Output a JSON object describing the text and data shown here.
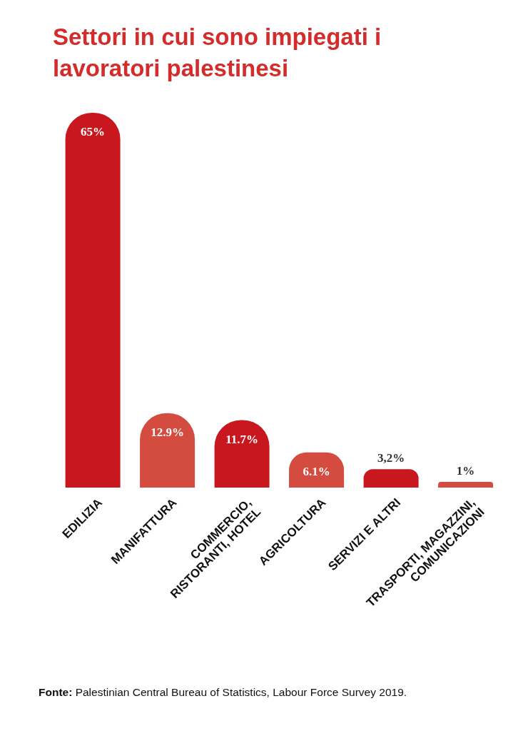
{
  "chart_data": {
    "type": "bar",
    "title": "Settori in cui sono impiegati i lavoratori palestinesi",
    "categories": [
      "EDILIZIA",
      "MANIFATTURA",
      "COMMERCIO, RISTORANTI, HOTEL",
      "AGRICOLTURA",
      "SERVIZI E ALTRI",
      "TRASPORTI, MAGAZZINI, COMUNICAZIONI"
    ],
    "values": [
      65,
      12.9,
      11.7,
      6.1,
      3.2,
      1
    ],
    "value_labels": [
      "65%",
      "12.9%",
      "11.7%",
      "6.1%",
      "3,2%",
      "1%"
    ],
    "colors": [
      "#c9171f",
      "#d44b3f",
      "#c9171f",
      "#d44b3f",
      "#c9171f",
      "#d44b3f"
    ],
    "annotations": [
      "Fonte: Palestinian Central Bureau of Statistics, Labour Force Survey 2019."
    ]
  }
}
